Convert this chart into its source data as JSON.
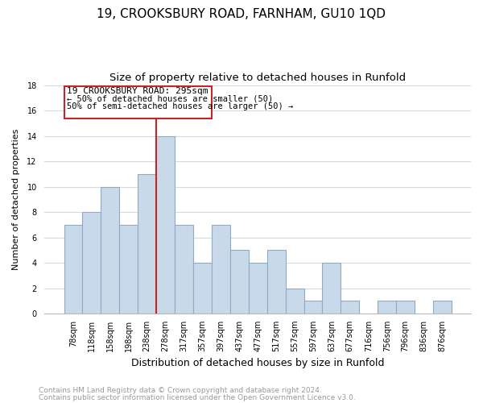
{
  "title": "19, CROOKSBURY ROAD, FARNHAM, GU10 1QD",
  "subtitle": "Size of property relative to detached houses in Runfold",
  "xlabel": "Distribution of detached houses by size in Runfold",
  "ylabel": "Number of detached properties",
  "footnote1": "Contains HM Land Registry data © Crown copyright and database right 2024.",
  "footnote2": "Contains public sector information licensed under the Open Government Licence v3.0.",
  "bar_labels": [
    "78sqm",
    "118sqm",
    "158sqm",
    "198sqm",
    "238sqm",
    "278sqm",
    "317sqm",
    "357sqm",
    "397sqm",
    "437sqm",
    "477sqm",
    "517sqm",
    "557sqm",
    "597sqm",
    "637sqm",
    "677sqm",
    "716sqm",
    "756sqm",
    "796sqm",
    "836sqm",
    "876sqm"
  ],
  "bar_values": [
    7,
    8,
    10,
    7,
    11,
    14,
    7,
    4,
    7,
    5,
    4,
    5,
    2,
    1,
    4,
    1,
    0,
    1,
    1,
    0,
    1
  ],
  "bar_color": "#c8d9ea",
  "bar_edge_color": "#90aac4",
  "ylim": [
    0,
    18
  ],
  "yticks": [
    0,
    2,
    4,
    6,
    8,
    10,
    12,
    14,
    16,
    18
  ],
  "vline_color": "#cc2222",
  "annotation_box_text1": "19 CROOKSBURY ROAD: 295sqm",
  "annotation_box_text2": "← 50% of detached houses are smaller (50)",
  "annotation_box_text3": "50% of semi-detached houses are larger (50) →",
  "background_color": "#ffffff",
  "grid_color": "#ccdde8",
  "title_fontsize": 11,
  "subtitle_fontsize": 9.5,
  "xlabel_fontsize": 9,
  "ylabel_fontsize": 8,
  "tick_fontsize": 7,
  "footnote_fontsize": 6.5,
  "annot_fontsize": 8
}
